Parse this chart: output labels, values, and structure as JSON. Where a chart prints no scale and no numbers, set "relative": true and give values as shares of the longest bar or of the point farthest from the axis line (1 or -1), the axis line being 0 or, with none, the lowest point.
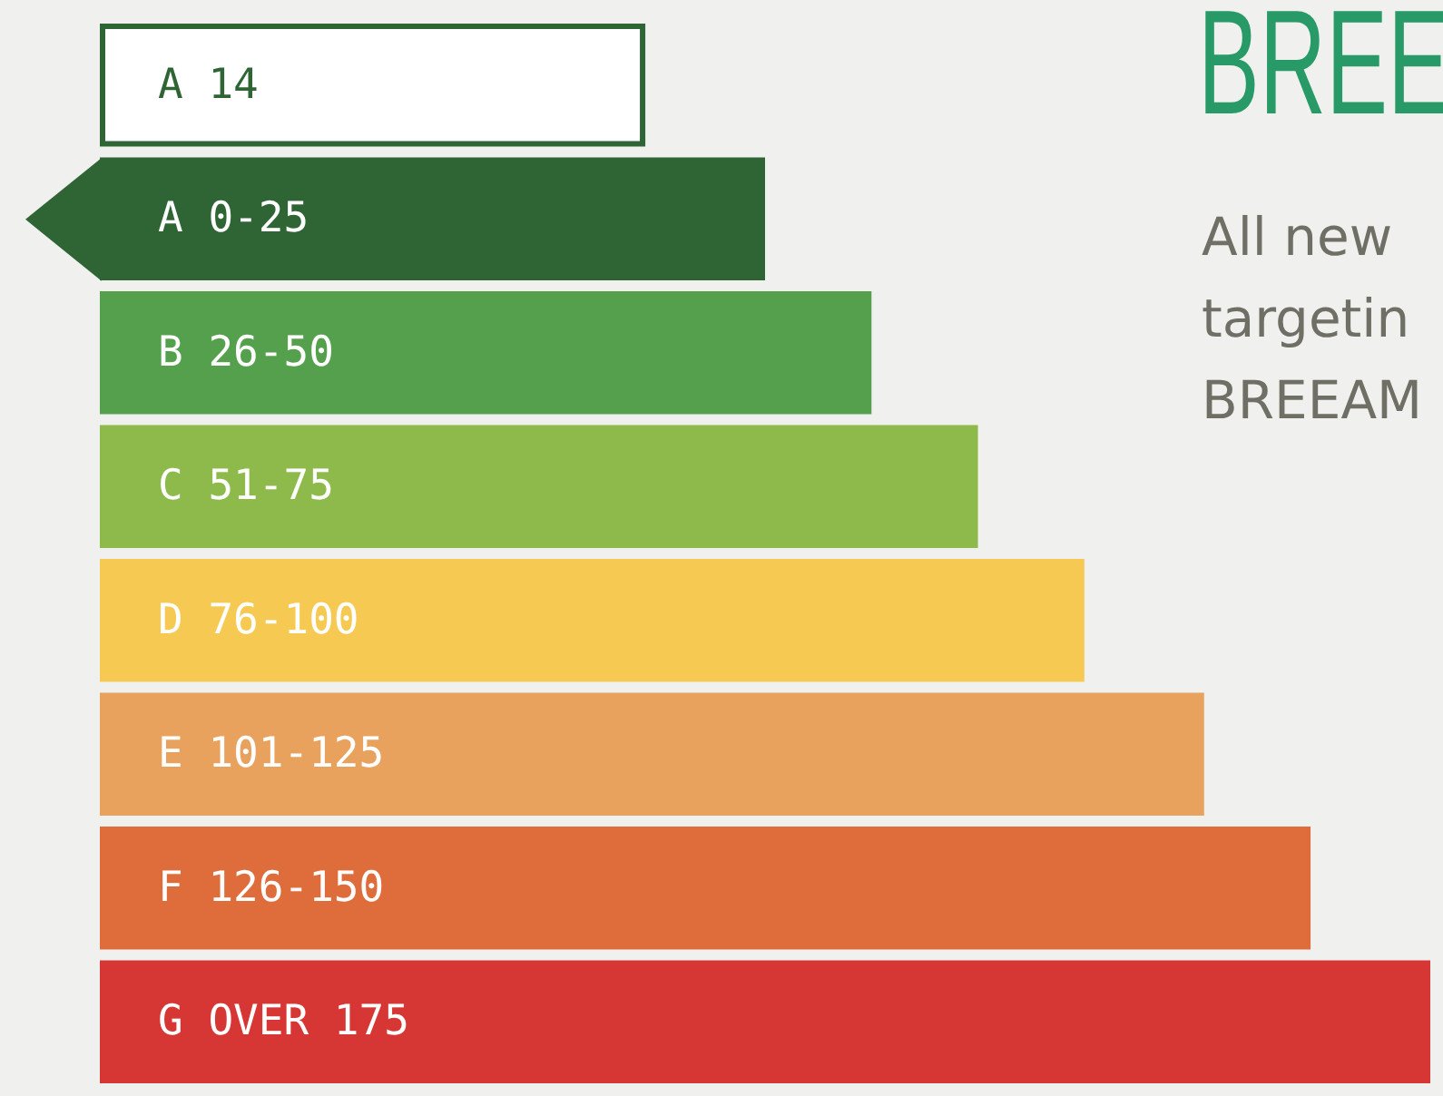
{
  "chart_data": {
    "type": "bar",
    "orientation": "horizontal",
    "relative": true,
    "title": "BREE",
    "categories": [
      "A 14",
      "A 0-25",
      "B 26-50",
      "C 51-75",
      "D 76-100",
      "E 101-125",
      "F 126-150",
      "G OVER 175"
    ],
    "values": [
      0.41,
      0.5,
      0.58,
      0.66,
      0.74,
      0.83,
      0.91,
      1
    ],
    "colors": [
      "#ffffff",
      "#2f6535",
      "#54a04d",
      "#8dba4b",
      "#f6ca52",
      "#e8a25e",
      "#de6d3b",
      "#d73734"
    ],
    "annotations": [
      "All new",
      "targetin",
      "BREEAM"
    ]
  }
}
